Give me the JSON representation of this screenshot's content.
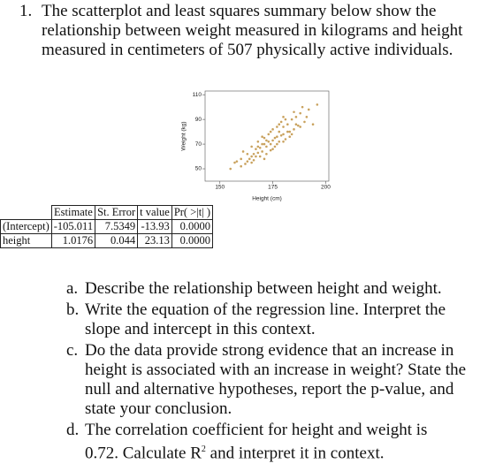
{
  "question": {
    "number": "1.",
    "text": "The scatterplot and least squares summary below show the relationship between weight measured in kilograms and height measured in centimeters of 507 physically active individuals."
  },
  "figure": {
    "x_label": "Height (cm)",
    "y_label": "Weight (kg)",
    "xlim": [
      143,
      201.5
    ],
    "ylim": [
      40,
      113
    ],
    "xticks": [
      150,
      175,
      200
    ],
    "yticks": [
      50,
      70,
      90,
      110
    ],
    "color": "#c9a25e",
    "points": {
      "x": [
        155,
        158,
        160,
        162,
        163,
        165,
        165,
        166,
        167,
        168,
        168,
        169,
        170,
        170,
        171,
        172,
        172,
        173,
        174,
        175,
        175,
        176,
        177,
        178,
        178,
        179,
        180,
        180,
        181,
        182,
        183,
        184,
        185,
        186,
        187,
        188,
        190,
        192,
        194,
        196,
        157,
        161,
        164,
        166,
        169,
        171,
        173,
        174,
        176,
        177,
        179,
        181,
        183,
        185,
        188,
        191,
        163,
        167,
        170,
        172,
        175,
        178,
        180,
        182,
        186,
        189,
        160,
        165,
        168,
        171,
        174,
        177,
        180,
        184
      ],
      "y": [
        50,
        56,
        58,
        54,
        62,
        60,
        68,
        57,
        66,
        63,
        72,
        60,
        70,
        64,
        75,
        68,
        62,
        78,
        70,
        73,
        82,
        68,
        76,
        80,
        72,
        88,
        78,
        84,
        74,
        86,
        80,
        90,
        82,
        92,
        85,
        95,
        88,
        98,
        86,
        102,
        55,
        64,
        58,
        62,
        67,
        58,
        72,
        80,
        75,
        84,
        77,
        90,
        76,
        96,
        84,
        92,
        56,
        60,
        76,
        73,
        66,
        86,
        72,
        80,
        86,
        100,
        52,
        55,
        68,
        70,
        65,
        70,
        92,
        78
      ]
    }
  },
  "table": {
    "header": [
      "Estimate",
      "St. Error",
      "t value",
      "Pr( >|t| )"
    ],
    "rows": [
      [
        "(Intercept)",
        "-105.011",
        "7.5349",
        "-13.93",
        "0.0000"
      ],
      [
        "height",
        "1.0176",
        "0.044",
        "23.13",
        "0.0000"
      ]
    ]
  },
  "parts": [
    {
      "label": "a.",
      "text": "Describe the relationship between height and weight."
    },
    {
      "label": "b.",
      "text": "Write the equation of the regression line. Interpret the slope and intercept in this context."
    },
    {
      "label": "c.",
      "text": "Do the data provide strong evidence that an increase in height is associated with an increase in weight? State the null and alternative hypotheses, report the p-value, and state your conclusion."
    },
    {
      "label": "d.",
      "text": "The correlation coefficient for height and weight is 0.72. Calculate R",
      "superscript": "2",
      "text_after": "and interpret it in context."
    }
  ]
}
